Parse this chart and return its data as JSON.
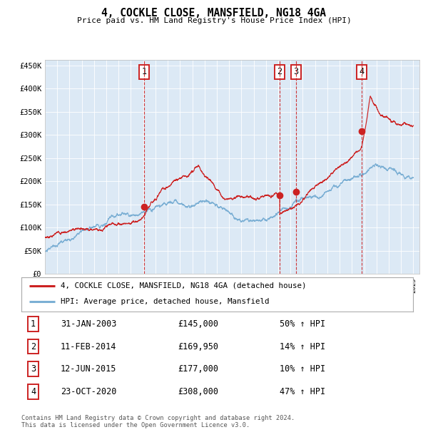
{
  "title": "4, COCKLE CLOSE, MANSFIELD, NG18 4GA",
  "subtitle": "Price paid vs. HM Land Registry's House Price Index (HPI)",
  "background_color": "#dce9f5",
  "outer_bg_color": "#ffffff",
  "hpi_color": "#7bafd4",
  "price_color": "#cc2222",
  "sale_dot_color": "#cc2222",
  "vline_color": "#cc2222",
  "ytick_labels": [
    "£0",
    "£50K",
    "£100K",
    "£150K",
    "£200K",
    "£250K",
    "£300K",
    "£350K",
    "£400K",
    "£450K"
  ],
  "yticks": [
    0,
    50000,
    100000,
    150000,
    200000,
    250000,
    300000,
    350000,
    400000,
    450000
  ],
  "xmin": 1995.0,
  "xmax": 2025.5,
  "ymin": 0,
  "ymax": 462000,
  "sales": [
    {
      "num": 1,
      "year": 2003.08,
      "price": 145000,
      "date": "31-JAN-2003",
      "pct": "50%",
      "dir": "↑"
    },
    {
      "num": 2,
      "year": 2014.12,
      "price": 169950,
      "date": "11-FEB-2014",
      "pct": "14%",
      "dir": "↑"
    },
    {
      "num": 3,
      "year": 2015.45,
      "price": 177000,
      "date": "12-JUN-2015",
      "pct": "10%",
      "dir": "↑"
    },
    {
      "num": 4,
      "year": 2020.81,
      "price": 308000,
      "date": "23-OCT-2020",
      "pct": "47%",
      "dir": "↑"
    }
  ],
  "legend_entries": [
    {
      "label": "4, COCKLE CLOSE, MANSFIELD, NG18 4GA (detached house)",
      "color": "#cc2222"
    },
    {
      "label": "HPI: Average price, detached house, Mansfield",
      "color": "#7bafd4"
    }
  ],
  "footer": "Contains HM Land Registry data © Crown copyright and database right 2024.\nThis data is licensed under the Open Government Licence v3.0.",
  "number_box_color": "#cc2222"
}
